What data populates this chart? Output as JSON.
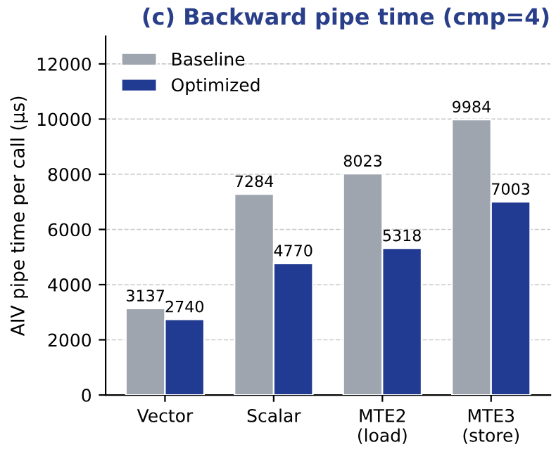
{
  "chart_data": {
    "type": "bar",
    "title": "(c) Backward pipe time (cmp=4)",
    "ylabel": "AIV pipe time per call (µs)",
    "categories": [
      "Vector",
      "Scalar",
      "MTE2\n(load)",
      "MTE3\n(store)"
    ],
    "series": [
      {
        "name": "Baseline",
        "color": "#9ea5af",
        "values": [
          3137,
          7284,
          8023,
          9984
        ]
      },
      {
        "name": "Optimized",
        "color": "#213a92",
        "values": [
          2740,
          4770,
          5318,
          7003
        ]
      }
    ],
    "ylim": [
      0,
      13000
    ],
    "yticks": [
      0,
      2000,
      4000,
      6000,
      8000,
      10000,
      12000
    ],
    "grid": "y",
    "legend": "top left",
    "data_labels": true
  }
}
